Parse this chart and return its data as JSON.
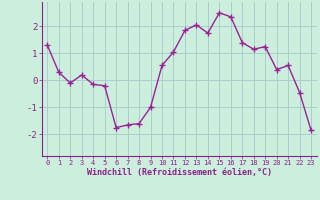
{
  "x": [
    0,
    1,
    2,
    3,
    4,
    5,
    6,
    7,
    8,
    9,
    10,
    11,
    12,
    13,
    14,
    15,
    16,
    17,
    18,
    19,
    20,
    21,
    22,
    23
  ],
  "y": [
    1.3,
    0.3,
    -0.1,
    0.2,
    -0.15,
    -0.2,
    -1.75,
    -1.65,
    -1.6,
    -1.0,
    0.55,
    1.05,
    1.85,
    2.05,
    1.75,
    2.5,
    2.35,
    1.4,
    1.15,
    1.25,
    0.4,
    0.55,
    -0.45,
    -1.85
  ],
  "line_color": "#992299",
  "marker": "+",
  "marker_size": 4,
  "marker_lw": 1.0,
  "bg_color": "#cceedd",
  "grid_color": "#aacccc",
  "xlabel": "Windchill (Refroidissement éolien,°C)",
  "xlabel_color": "#882288",
  "tick_color": "#882288",
  "ylim": [
    -2.8,
    2.9
  ],
  "xlim": [
    -0.5,
    23.5
  ],
  "yticks": [
    -2,
    -1,
    0,
    1,
    2
  ],
  "xtick_labels": [
    "0",
    "1",
    "2",
    "3",
    "4",
    "5",
    "6",
    "7",
    "8",
    "9",
    "10",
    "11",
    "12",
    "13",
    "14",
    "15",
    "16",
    "17",
    "18",
    "19",
    "20",
    "21",
    "22",
    "23"
  ],
  "linewidth": 1.0
}
